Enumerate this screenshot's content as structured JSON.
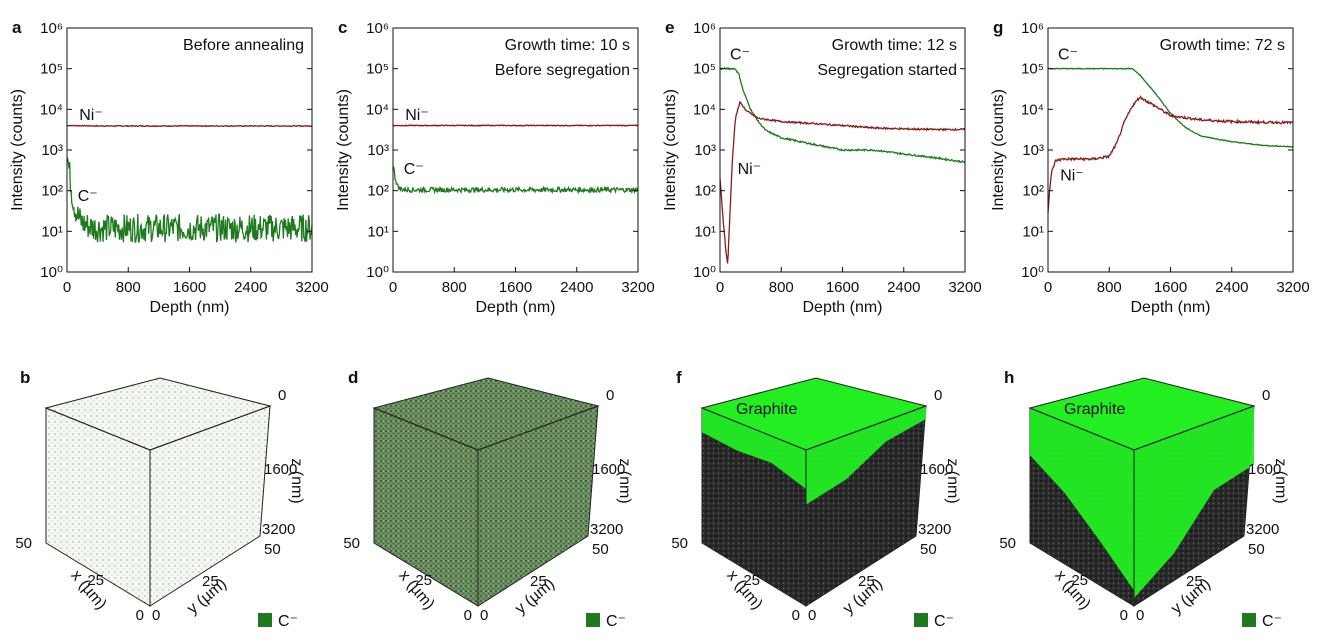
{
  "colors": {
    "c_series": "#1f7a1f",
    "ni_series": "#8b1a1a",
    "graphite": "#22ee22",
    "axis": "#111111"
  },
  "cube_common": {
    "z_label": "z (nm)",
    "x_label": "x (µm)",
    "y_label": "y (µm)",
    "z_ticks": [
      "0",
      "1600",
      "3200"
    ],
    "x_ticks": [
      "50",
      "25",
      "0"
    ],
    "y_ticks": [
      "0",
      "25",
      "50"
    ],
    "legend_label": "C⁻"
  },
  "chart_data": [
    {
      "panel": "a",
      "type": "line",
      "annotations": [
        "Before annealing"
      ],
      "xlabel": "Depth (nm)",
      "ylabel": "Intensity (counts)",
      "xlim": [
        0,
        3200
      ],
      "ylim": [
        1,
        1000000
      ],
      "yscale": "log",
      "xticks": [
        "0",
        "800",
        "1600",
        "2400",
        "3200"
      ],
      "yticks": [
        "10⁰",
        "10¹",
        "10²",
        "10³",
        "10⁴",
        "10⁵",
        "10⁶"
      ],
      "series": [
        {
          "name": "Ni⁻",
          "label_at": [
            160,
            5500
          ],
          "x": [
            0,
            400,
            800,
            1200,
            1600,
            2000,
            2400,
            2800,
            3200
          ],
          "y": [
            4000,
            3900,
            3900,
            3900,
            3900,
            3900,
            3900,
            3900,
            3900
          ],
          "noise": 0.01
        },
        {
          "name": "C⁻",
          "label_at": [
            140,
            55
          ],
          "x": [
            0,
            30,
            60,
            100,
            150,
            200,
            300,
            400,
            800,
            1600,
            2400,
            3200
          ],
          "y": [
            800,
            300,
            100,
            40,
            22,
            16,
            13,
            12,
            12,
            12,
            12,
            12
          ],
          "noise": 0.35
        }
      ]
    },
    {
      "panel": "c",
      "type": "line",
      "annotations": [
        "Growth time: 10 s",
        "Before segregation"
      ],
      "xlabel": "Depth (nm)",
      "ylabel": "Intensity (counts)",
      "xlim": [
        0,
        3200
      ],
      "ylim": [
        1,
        1000000
      ],
      "yscale": "log",
      "xticks": [
        "0",
        "800",
        "1600",
        "2400",
        "3200"
      ],
      "yticks": [
        "10⁰",
        "10¹",
        "10²",
        "10³",
        "10⁴",
        "10⁵",
        "10⁶"
      ],
      "series": [
        {
          "name": "Ni⁻",
          "label_at": [
            160,
            5500
          ],
          "x": [
            0,
            400,
            800,
            1200,
            1600,
            2000,
            2400,
            2800,
            3200
          ],
          "y": [
            4000,
            4000,
            4000,
            4000,
            4000,
            4000,
            4000,
            4000,
            4000
          ],
          "noise": 0.01
        },
        {
          "name": "C⁻",
          "label_at": [
            140,
            260
          ],
          "x": [
            0,
            30,
            60,
            100,
            200,
            800,
            1600,
            2400,
            3200
          ],
          "y": [
            450,
            200,
            130,
            110,
            105,
            105,
            105,
            105,
            105
          ],
          "noise": 0.06
        }
      ]
    },
    {
      "panel": "e",
      "type": "line",
      "annotations": [
        "Growth time: 12 s",
        "Segregation started"
      ],
      "xlabel": "Depth (nm)",
      "ylabel": "Intensity (counts)",
      "xlim": [
        0,
        3200
      ],
      "ylim": [
        1,
        1000000
      ],
      "yscale": "log",
      "xticks": [
        "0",
        "800",
        "1600",
        "2400",
        "3200"
      ],
      "yticks": [
        "10⁰",
        "10¹",
        "10²",
        "10³",
        "10⁴",
        "10⁵",
        "10⁶"
      ],
      "series": [
        {
          "name": "C⁻",
          "label_at": [
            130,
            170000
          ],
          "x": [
            0,
            100,
            200,
            250,
            300,
            400,
            500,
            600,
            800,
            1200,
            1600,
            2000,
            2400,
            2800,
            3200
          ],
          "y": [
            100000,
            100000,
            100000,
            70000,
            30000,
            10000,
            5000,
            3000,
            2000,
            1400,
            1000,
            1000,
            800,
            650,
            500
          ],
          "noise": 0.02
        },
        {
          "name": "Ni⁻",
          "label_at": [
            230,
            260
          ],
          "x": [
            0,
            40,
            80,
            100,
            120,
            160,
            200,
            260,
            350,
            500,
            800,
            1200,
            1600,
            2000,
            2400,
            2800,
            3200
          ],
          "y": [
            200,
            20,
            3,
            1.5,
            10,
            500,
            6000,
            15000,
            9000,
            6000,
            5000,
            4500,
            4000,
            3500,
            3300,
            3200,
            3200
          ],
          "noise": 0.02
        }
      ]
    },
    {
      "panel": "g",
      "type": "line",
      "annotations": [
        "Growth time: 72 s"
      ],
      "xlabel": "Depth (nm)",
      "ylabel": "Intensity (counts)",
      "xlim": [
        0,
        3200
      ],
      "ylim": [
        1,
        1000000
      ],
      "yscale": "log",
      "xticks": [
        "0",
        "800",
        "1600",
        "2400",
        "3200"
      ],
      "yticks": [
        "10⁰",
        "10¹",
        "10²",
        "10³",
        "10⁴",
        "10⁵",
        "10⁶"
      ],
      "series": [
        {
          "name": "C⁻",
          "label_at": [
            130,
            170000
          ],
          "x": [
            0,
            400,
            800,
            1100,
            1200,
            1400,
            1600,
            1800,
            2000,
            2400,
            2800,
            3200
          ],
          "y": [
            100000,
            100000,
            100000,
            100000,
            70000,
            25000,
            8000,
            3500,
            2200,
            1600,
            1300,
            1200
          ],
          "noise": 0.01
        },
        {
          "name": "Ni⁻",
          "label_at": [
            160,
            180
          ],
          "x": [
            0,
            20,
            50,
            100,
            200,
            400,
            600,
            800,
            900,
            1000,
            1100,
            1200,
            1400,
            1600,
            2000,
            2400,
            2800,
            3200
          ],
          "y": [
            30,
            100,
            300,
            550,
            600,
            600,
            600,
            700,
            1500,
            5000,
            12000,
            20000,
            12000,
            7000,
            5500,
            5000,
            4800,
            4700
          ],
          "noise": 0.03
        }
      ]
    }
  ],
  "cubes": [
    {
      "panel": "b",
      "density": 0.12,
      "graphite": false,
      "graphite_label": ""
    },
    {
      "panel": "d",
      "density": 0.55,
      "graphite": false,
      "graphite_label": ""
    },
    {
      "panel": "f",
      "density": 0.8,
      "graphite": true,
      "graphite_label": "Graphite",
      "front_profile": [
        0.18,
        0.2,
        0.18,
        0.25,
        0.35,
        0.3,
        0.15,
        0.1
      ]
    },
    {
      "panel": "h",
      "density": 0.8,
      "graphite": true,
      "graphite_label": "Graphite",
      "front_profile": [
        0.35,
        0.5,
        0.7,
        0.9,
        0.95,
        0.8,
        0.5,
        0.45
      ]
    }
  ]
}
